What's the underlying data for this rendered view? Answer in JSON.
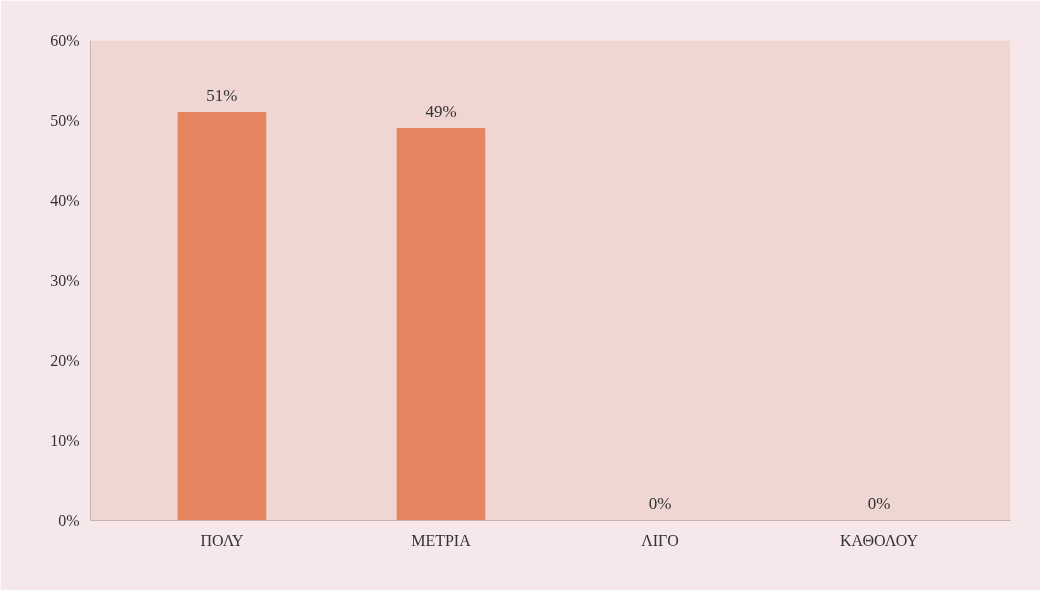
{
  "chart_data": {
    "type": "bar",
    "categories": [
      "ΠΟΛΥ",
      "ΜΕΤΡΙΑ",
      "ΛΙΓΟ",
      "ΚΑΘΟΛΟΥ"
    ],
    "values": [
      51,
      49,
      0,
      0
    ],
    "value_labels": [
      "51%",
      "49%",
      "0%",
      "0%"
    ],
    "color": "#e5845e",
    "ylim": [
      0,
      60
    ],
    "yticks": [
      {
        "value": 0,
        "label": "0%"
      },
      {
        "value": 10,
        "label": "10%"
      },
      {
        "value": 20,
        "label": "20%"
      },
      {
        "value": 30,
        "label": "30%"
      },
      {
        "value": 40,
        "label": "40%"
      },
      {
        "value": 50,
        "label": "50%"
      },
      {
        "value": 60,
        "label": "60%"
      }
    ],
    "grid": false
  }
}
